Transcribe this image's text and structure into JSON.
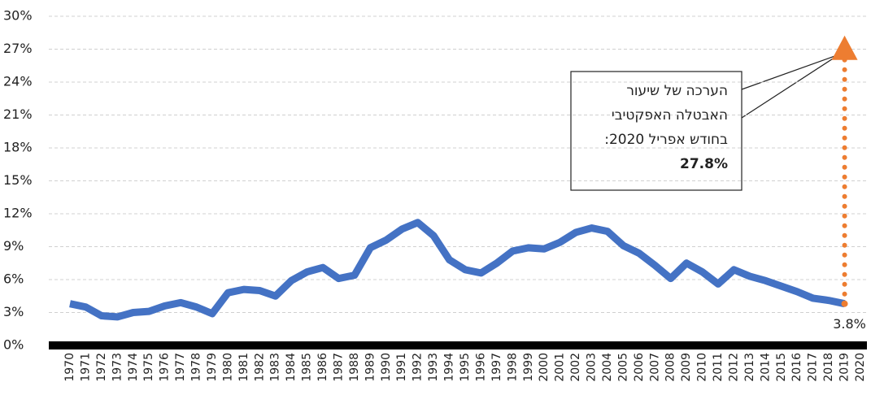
{
  "chart_data": {
    "type": "line",
    "categories": [
      "1970",
      "1971",
      "1972",
      "1973",
      "1974",
      "1975",
      "1976",
      "1977",
      "1978",
      "1979",
      "1980",
      "1981",
      "1982",
      "1983",
      "1984",
      "1985",
      "1986",
      "1987",
      "1988",
      "1989",
      "1990",
      "1991",
      "1992",
      "1993",
      "1994",
      "1995",
      "1996",
      "1997",
      "1998",
      "1999",
      "2000",
      "2001",
      "2002",
      "2003",
      "2004",
      "2005",
      "2006",
      "2007",
      "2008",
      "2009",
      "2010",
      "2011",
      "2012",
      "2013",
      "2014",
      "2015",
      "2016",
      "2017",
      "2018",
      "2019",
      "2020"
    ],
    "series": [
      {
        "color": "#4472c4",
        "values": [
          3.8,
          3.5,
          2.7,
          2.6,
          3.0,
          3.1,
          3.6,
          3.9,
          3.5,
          2.9,
          4.8,
          5.1,
          5.0,
          4.5,
          5.9,
          6.7,
          7.1,
          6.1,
          6.4,
          8.9,
          9.6,
          10.6,
          11.2,
          10.0,
          7.8,
          6.9,
          6.6,
          7.5,
          8.6,
          8.9,
          8.8,
          9.4,
          10.3,
          10.7,
          10.4,
          9.1,
          8.4,
          7.3,
          6.1,
          7.5,
          6.7,
          5.6,
          6.9,
          6.3,
          5.9,
          5.4,
          4.9,
          4.3,
          4.1,
          3.8,
          null
        ],
        "value_labels": [
          null,
          null,
          null,
          null,
          null,
          null,
          null,
          null,
          null,
          null,
          null,
          null,
          null,
          null,
          null,
          null,
          null,
          null,
          null,
          null,
          null,
          null,
          null,
          null,
          null,
          null,
          null,
          null,
          null,
          null,
          null,
          null,
          null,
          null,
          null,
          null,
          null,
          null,
          null,
          null,
          null,
          null,
          null,
          null,
          null,
          null,
          null,
          null,
          null,
          "3.8%",
          null
        ]
      }
    ],
    "ylim": [
      0,
      30
    ],
    "yticks": [
      {
        "value": 0,
        "label": "0%"
      },
      {
        "value": 3,
        "label": "3%"
      },
      {
        "value": 6,
        "label": "6%"
      },
      {
        "value": 9,
        "label": "9%"
      },
      {
        "value": 12,
        "label": "12%"
      },
      {
        "value": 15,
        "label": "15%"
      },
      {
        "value": 18,
        "label": "18%"
      },
      {
        "value": 21,
        "label": "21%"
      },
      {
        "value": 24,
        "label": "24%"
      },
      {
        "value": 27,
        "label": "27%"
      },
      {
        "value": 30,
        "label": "30%"
      }
    ],
    "grid": true,
    "projection": {
      "category": 49,
      "value": 27.8,
      "color": "#ed7d31",
      "text": [
        "הערכה של שיעור",
        "האבטלה האפקטיבי",
        "בחודש אפריל 2020:"
      ],
      "label": "27.8%"
    }
  }
}
